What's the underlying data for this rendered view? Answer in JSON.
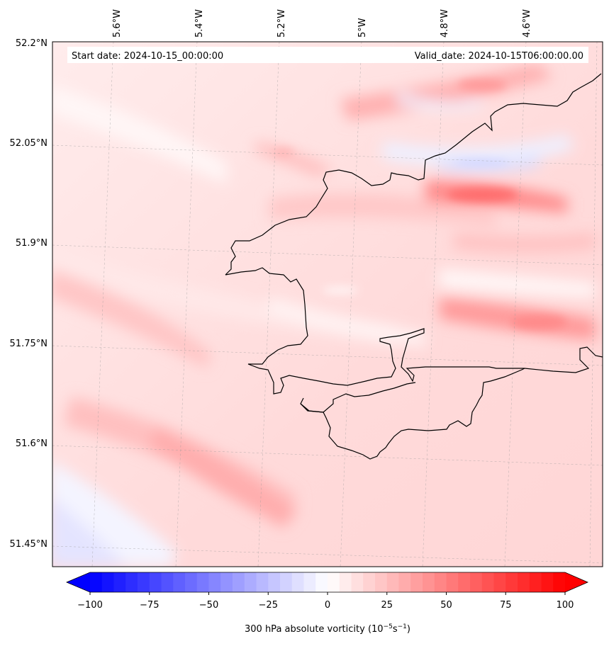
{
  "map": {
    "start_label": "Start date: 2024-10-15_00:00:00",
    "valid_label": "Valid_date: 2024-10-15T06:00:00.00",
    "lon_labels": [
      "5.6°W",
      "5.4°W",
      "5.2°W",
      "5°W",
      "4.8°W",
      "4.6°W"
    ],
    "lat_labels": [
      "52.2°N",
      "52.05°N",
      "51.9°N",
      "51.6°N",
      "51.75°N",
      "51.45°N"
    ],
    "coastline_color": "#000000"
  },
  "colorbar": {
    "ticks": [
      "−100",
      "−75",
      "−50",
      "−25",
      "0",
      "25",
      "50",
      "75",
      "100"
    ],
    "label": "300 hPa absolute vorticity (10",
    "label_exp1": "−5",
    "label_mid": "s",
    "label_exp2": "−1",
    "label_end": ")",
    "min_color": "#0000ff",
    "mid_color": "#ffffff",
    "max_color": "#ff0000"
  }
}
